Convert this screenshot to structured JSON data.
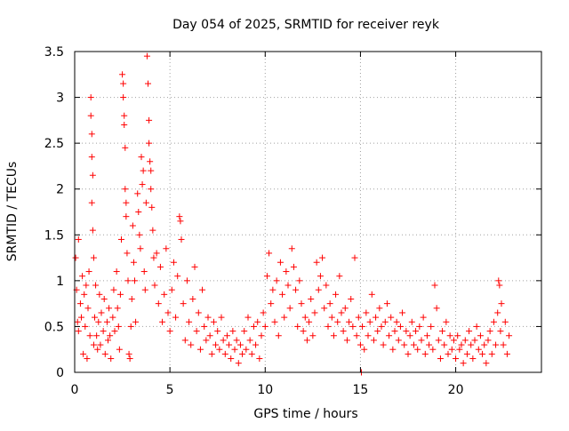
{
  "chart_data": {
    "type": "scatter",
    "title": "Day 054 of 2025, SRMTID for receiver reyk",
    "xlabel": "GPS time / hours",
    "ylabel": "SRMTID / TECUs",
    "xlim": [
      0,
      24.5
    ],
    "ylim": [
      0,
      3.5
    ],
    "grid": true,
    "marker": "plus",
    "color": "#ff0000",
    "x_ticks": [
      0,
      5,
      10,
      15,
      20
    ],
    "x_tick_labels": [
      "0",
      "5",
      "10",
      "15",
      "20"
    ],
    "y_ticks": [
      0,
      0.5,
      1,
      1.5,
      2,
      2.5,
      3,
      3.5
    ],
    "y_tick_labels": [
      "0",
      "0.5",
      "1",
      "1.5",
      "2",
      "2.5",
      "3",
      "3.5"
    ],
    "series": [
      {
        "name": "SRMTID",
        "points": [
          [
            0.05,
            1.25
          ],
          [
            0.1,
            0.9
          ],
          [
            0.15,
            0.55
          ],
          [
            0.2,
            0.45
          ],
          [
            0.2,
            1.45
          ],
          [
            0.3,
            0.75
          ],
          [
            0.35,
            0.6
          ],
          [
            0.4,
            1.05
          ],
          [
            0.45,
            0.2
          ],
          [
            0.5,
            0.85
          ],
          [
            0.55,
            0.5
          ],
          [
            0.6,
            0.95
          ],
          [
            0.65,
            0.15
          ],
          [
            0.7,
            0.7
          ],
          [
            0.75,
            1.1
          ],
          [
            0.8,
            0.4
          ],
          [
            0.85,
            3.0
          ],
          [
            0.85,
            2.8
          ],
          [
            0.9,
            2.6
          ],
          [
            0.9,
            2.35
          ],
          [
            0.95,
            2.15
          ],
          [
            0.9,
            1.85
          ],
          [
            0.95,
            1.55
          ],
          [
            1.0,
            1.25
          ],
          [
            1.0,
            0.3
          ],
          [
            1.05,
            0.6
          ],
          [
            1.1,
            0.95
          ],
          [
            1.15,
            0.4
          ],
          [
            1.2,
            0.25
          ],
          [
            1.25,
            0.55
          ],
          [
            1.3,
            0.85
          ],
          [
            1.35,
            0.3
          ],
          [
            1.4,
            0.65
          ],
          [
            1.5,
            0.45
          ],
          [
            1.55,
            0.8
          ],
          [
            1.6,
            0.2
          ],
          [
            1.7,
            0.55
          ],
          [
            1.75,
            0.35
          ],
          [
            1.8,
            0.7
          ],
          [
            1.85,
            0.4
          ],
          [
            1.9,
            0.15
          ],
          [
            2.0,
            0.6
          ],
          [
            2.05,
            0.9
          ],
          [
            2.1,
            0.45
          ],
          [
            2.2,
            1.1
          ],
          [
            2.25,
            0.7
          ],
          [
            2.3,
            0.5
          ],
          [
            2.35,
            0.25
          ],
          [
            2.4,
            0.85
          ],
          [
            2.45,
            1.45
          ],
          [
            2.5,
            3.25
          ],
          [
            2.55,
            3.15
          ],
          [
            2.55,
            3.0
          ],
          [
            2.6,
            2.8
          ],
          [
            2.6,
            2.7
          ],
          [
            2.65,
            2.45
          ],
          [
            2.65,
            2.0
          ],
          [
            2.7,
            1.85
          ],
          [
            2.7,
            1.7
          ],
          [
            2.75,
            1.3
          ],
          [
            2.8,
            1.0
          ],
          [
            2.85,
            0.2
          ],
          [
            2.9,
            0.15
          ],
          [
            2.95,
            0.5
          ],
          [
            3.0,
            0.8
          ],
          [
            3.05,
            1.6
          ],
          [
            3.1,
            1.2
          ],
          [
            3.15,
            1.0
          ],
          [
            3.2,
            0.55
          ],
          [
            3.3,
            1.95
          ],
          [
            3.35,
            1.75
          ],
          [
            3.4,
            1.5
          ],
          [
            3.45,
            1.35
          ],
          [
            3.5,
            2.35
          ],
          [
            3.55,
            2.05
          ],
          [
            3.6,
            2.2
          ],
          [
            3.65,
            1.1
          ],
          [
            3.7,
            0.9
          ],
          [
            3.75,
            1.85
          ],
          [
            3.8,
            3.45
          ],
          [
            3.85,
            3.15
          ],
          [
            3.9,
            2.75
          ],
          [
            3.9,
            2.5
          ],
          [
            3.95,
            2.3
          ],
          [
            4.0,
            2.2
          ],
          [
            4.0,
            2.0
          ],
          [
            4.05,
            1.8
          ],
          [
            4.1,
            1.55
          ],
          [
            4.15,
            1.25
          ],
          [
            4.2,
            0.95
          ],
          [
            4.3,
            1.3
          ],
          [
            4.4,
            0.75
          ],
          [
            4.5,
            1.15
          ],
          [
            4.6,
            0.55
          ],
          [
            4.7,
            0.85
          ],
          [
            4.8,
            1.35
          ],
          [
            4.9,
            0.65
          ],
          [
            5.0,
            0.45
          ],
          [
            5.1,
            0.9
          ],
          [
            5.2,
            1.2
          ],
          [
            5.3,
            0.6
          ],
          [
            5.4,
            1.05
          ],
          [
            5.5,
            1.7
          ],
          [
            5.55,
            1.65
          ],
          [
            5.6,
            1.45
          ],
          [
            5.7,
            0.75
          ],
          [
            5.8,
            0.35
          ],
          [
            5.9,
            1.0
          ],
          [
            6.0,
            0.55
          ],
          [
            6.1,
            0.3
          ],
          [
            6.2,
            0.8
          ],
          [
            6.3,
            1.15
          ],
          [
            6.4,
            0.45
          ],
          [
            6.5,
            0.65
          ],
          [
            6.6,
            0.25
          ],
          [
            6.7,
            0.9
          ],
          [
            6.8,
            0.5
          ],
          [
            6.9,
            0.35
          ],
          [
            7.0,
            0.6
          ],
          [
            7.1,
            0.4
          ],
          [
            7.2,
            0.2
          ],
          [
            7.3,
            0.55
          ],
          [
            7.4,
            0.3
          ],
          [
            7.5,
            0.45
          ],
          [
            7.6,
            0.25
          ],
          [
            7.7,
            0.6
          ],
          [
            7.8,
            0.35
          ],
          [
            7.9,
            0.2
          ],
          [
            8.0,
            0.4
          ],
          [
            8.1,
            0.3
          ],
          [
            8.2,
            0.15
          ],
          [
            8.3,
            0.45
          ],
          [
            8.4,
            0.25
          ],
          [
            8.5,
            0.35
          ],
          [
            8.6,
            0.1
          ],
          [
            8.7,
            0.3
          ],
          [
            8.8,
            0.2
          ],
          [
            8.9,
            0.45
          ],
          [
            9.0,
            0.25
          ],
          [
            9.1,
            0.6
          ],
          [
            9.2,
            0.35
          ],
          [
            9.3,
            0.2
          ],
          [
            9.4,
            0.5
          ],
          [
            9.5,
            0.3
          ],
          [
            9.6,
            0.55
          ],
          [
            9.7,
            0.15
          ],
          [
            9.8,
            0.4
          ],
          [
            9.9,
            0.65
          ],
          [
            10.0,
            0.5
          ],
          [
            10.1,
            1.05
          ],
          [
            10.2,
            1.3
          ],
          [
            10.3,
            0.75
          ],
          [
            10.4,
            0.9
          ],
          [
            10.5,
            0.55
          ],
          [
            10.6,
            1.0
          ],
          [
            10.7,
            0.4
          ],
          [
            10.8,
            1.2
          ],
          [
            10.9,
            0.85
          ],
          [
            11.0,
            0.6
          ],
          [
            11.1,
            1.1
          ],
          [
            11.2,
            0.95
          ],
          [
            11.3,
            0.7
          ],
          [
            11.4,
            1.35
          ],
          [
            11.5,
            1.15
          ],
          [
            11.6,
            0.9
          ],
          [
            11.7,
            0.5
          ],
          [
            11.8,
            1.0
          ],
          [
            11.9,
            0.75
          ],
          [
            12.0,
            0.45
          ],
          [
            12.1,
            0.6
          ],
          [
            12.2,
            0.35
          ],
          [
            12.3,
            0.55
          ],
          [
            12.4,
            0.8
          ],
          [
            12.5,
            0.4
          ],
          [
            12.6,
            0.65
          ],
          [
            12.7,
            1.2
          ],
          [
            12.8,
            0.9
          ],
          [
            12.9,
            1.05
          ],
          [
            13.0,
            1.25
          ],
          [
            13.1,
            0.7
          ],
          [
            13.2,
            0.95
          ],
          [
            13.3,
            0.5
          ],
          [
            13.4,
            0.75
          ],
          [
            13.5,
            0.6
          ],
          [
            13.6,
            0.4
          ],
          [
            13.7,
            0.85
          ],
          [
            13.8,
            0.55
          ],
          [
            13.9,
            1.05
          ],
          [
            14.0,
            0.65
          ],
          [
            14.1,
            0.45
          ],
          [
            14.2,
            0.7
          ],
          [
            14.3,
            0.35
          ],
          [
            14.4,
            0.55
          ],
          [
            14.5,
            0.8
          ],
          [
            14.6,
            0.5
          ],
          [
            14.7,
            1.25
          ],
          [
            14.8,
            0.4
          ],
          [
            14.9,
            0.6
          ],
          [
            15.0,
            0.3
          ],
          [
            15.05,
            0.0
          ],
          [
            15.1,
            0.5
          ],
          [
            15.2,
            0.25
          ],
          [
            15.3,
            0.65
          ],
          [
            15.4,
            0.4
          ],
          [
            15.5,
            0.55
          ],
          [
            15.6,
            0.85
          ],
          [
            15.7,
            0.35
          ],
          [
            15.8,
            0.6
          ],
          [
            15.9,
            0.45
          ],
          [
            16.0,
            0.7
          ],
          [
            16.1,
            0.5
          ],
          [
            16.2,
            0.3
          ],
          [
            16.3,
            0.55
          ],
          [
            16.4,
            0.75
          ],
          [
            16.5,
            0.4
          ],
          [
            16.6,
            0.6
          ],
          [
            16.7,
            0.25
          ],
          [
            16.8,
            0.45
          ],
          [
            16.9,
            0.55
          ],
          [
            17.0,
            0.35
          ],
          [
            17.1,
            0.5
          ],
          [
            17.2,
            0.65
          ],
          [
            17.3,
            0.3
          ],
          [
            17.4,
            0.45
          ],
          [
            17.5,
            0.2
          ],
          [
            17.6,
            0.4
          ],
          [
            17.7,
            0.55
          ],
          [
            17.8,
            0.3
          ],
          [
            17.9,
            0.45
          ],
          [
            18.0,
            0.25
          ],
          [
            18.1,
            0.5
          ],
          [
            18.2,
            0.35
          ],
          [
            18.3,
            0.6
          ],
          [
            18.4,
            0.2
          ],
          [
            18.5,
            0.4
          ],
          [
            18.6,
            0.3
          ],
          [
            18.7,
            0.5
          ],
          [
            18.8,
            0.25
          ],
          [
            18.9,
            0.95
          ],
          [
            19.0,
            0.7
          ],
          [
            19.1,
            0.35
          ],
          [
            19.2,
            0.15
          ],
          [
            19.3,
            0.45
          ],
          [
            19.4,
            0.3
          ],
          [
            19.5,
            0.55
          ],
          [
            19.6,
            0.2
          ],
          [
            19.7,
            0.4
          ],
          [
            19.8,
            0.25
          ],
          [
            19.9,
            0.35
          ],
          [
            20.0,
            0.15
          ],
          [
            20.1,
            0.4
          ],
          [
            20.2,
            0.25
          ],
          [
            20.3,
            0.3
          ],
          [
            20.4,
            0.1
          ],
          [
            20.5,
            0.35
          ],
          [
            20.6,
            0.2
          ],
          [
            20.7,
            0.45
          ],
          [
            20.8,
            0.3
          ],
          [
            20.9,
            0.15
          ],
          [
            21.0,
            0.35
          ],
          [
            21.1,
            0.5
          ],
          [
            21.2,
            0.25
          ],
          [
            21.3,
            0.4
          ],
          [
            21.4,
            0.2
          ],
          [
            21.5,
            0.3
          ],
          [
            21.6,
            0.1
          ],
          [
            21.7,
            0.35
          ],
          [
            21.8,
            0.45
          ],
          [
            21.9,
            0.2
          ],
          [
            22.0,
            0.55
          ],
          [
            22.1,
            0.3
          ],
          [
            22.2,
            0.65
          ],
          [
            22.25,
            1.0
          ],
          [
            22.3,
            0.95
          ],
          [
            22.35,
            0.45
          ],
          [
            22.4,
            0.75
          ],
          [
            22.5,
            0.3
          ],
          [
            22.6,
            0.55
          ],
          [
            22.7,
            0.2
          ],
          [
            22.8,
            0.4
          ]
        ]
      }
    ]
  }
}
